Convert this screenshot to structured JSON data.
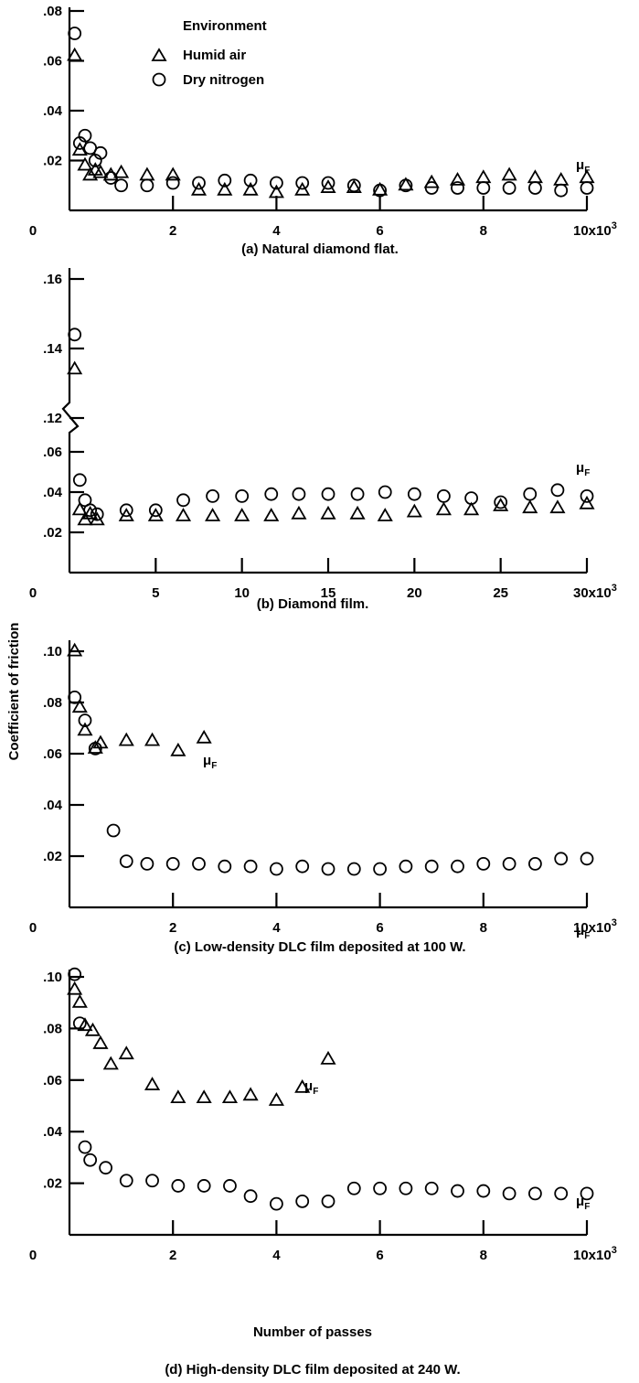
{
  "y_axis_label": "Coefficient of friction",
  "legend": {
    "title": "Environment",
    "entries": [
      {
        "marker": "triangle",
        "label": "Humid air"
      },
      {
        "marker": "circle",
        "label": "Dry nitrogen"
      }
    ]
  },
  "x_axis_label": "Number of passes",
  "chart_data": [
    {
      "type": "scatter",
      "caption": "(a) Natural diamond flat.",
      "xlim": [
        0,
        10000
      ],
      "ylim": [
        0,
        0.08
      ],
      "x_ticks": [
        "0",
        "2",
        "4",
        "6",
        "8"
      ],
      "x_multiplier": "10x10",
      "x_multiplier_exp": "3",
      "y_ticks": [
        ".02",
        ".04",
        ".06",
        ".08"
      ],
      "annotations": [
        {
          "text": "μ",
          "sub": "F"
        }
      ],
      "series": [
        {
          "name": "Humid air",
          "marker": "triangle",
          "x": [
            100,
            200,
            300,
            400,
            500,
            600,
            800,
            1000,
            1500,
            2000,
            2500,
            3000,
            3500,
            4000,
            4500,
            5000,
            5500,
            6000,
            6500,
            7000,
            7500,
            8000,
            8500,
            9000,
            9500,
            10000
          ],
          "y": [
            0.062,
            0.024,
            0.018,
            0.014,
            0.016,
            0.015,
            0.014,
            0.015,
            0.014,
            0.014,
            0.008,
            0.008,
            0.008,
            0.007,
            0.008,
            0.009,
            0.009,
            0.008,
            0.01,
            0.011,
            0.012,
            0.013,
            0.014,
            0.013,
            0.012,
            0.013
          ]
        },
        {
          "name": "Dry nitrogen",
          "marker": "circle",
          "x": [
            100,
            200,
            300,
            400,
            500,
            600,
            800,
            1000,
            1500,
            2000,
            2500,
            3000,
            3500,
            4000,
            4500,
            5000,
            5500,
            6000,
            6500,
            7000,
            7500,
            8000,
            8500,
            9000,
            9500,
            10000
          ],
          "y": [
            0.071,
            0.027,
            0.03,
            0.025,
            0.02,
            0.023,
            0.013,
            0.01,
            0.01,
            0.011,
            0.011,
            0.012,
            0.012,
            0.011,
            0.011,
            0.011,
            0.01,
            0.008,
            0.01,
            0.009,
            0.009,
            0.009,
            0.009,
            0.009,
            0.008,
            0.009
          ]
        }
      ]
    },
    {
      "type": "scatter",
      "caption": "(b) Diamond film.",
      "xlim": [
        0,
        30000
      ],
      "broken_axis": true,
      "y_ticks": [
        ".02",
        ".04",
        ".06",
        ".12",
        ".14",
        ".16"
      ],
      "x_ticks": [
        "0",
        "5",
        "10",
        "15",
        "20",
        "25"
      ],
      "x_multiplier": "30x10",
      "x_multiplier_exp": "3",
      "annotations": [
        {
          "text": "μ",
          "sub": "F"
        }
      ],
      "series": [
        {
          "name": "Humid air",
          "marker": "triangle",
          "x": [
            300,
            600,
            900,
            1200,
            1600,
            3300,
            5000,
            6600,
            8300,
            10000,
            11700,
            13300,
            15000,
            16700,
            18300,
            20000,
            21700,
            23300,
            25000,
            26700,
            28300,
            30000
          ],
          "y": [
            0.134,
            0.031,
            0.026,
            0.029,
            0.026,
            0.028,
            0.028,
            0.028,
            0.028,
            0.028,
            0.028,
            0.029,
            0.029,
            0.029,
            0.028,
            0.03,
            0.031,
            0.031,
            0.033,
            0.032,
            0.032,
            0.034
          ]
        },
        {
          "name": "Dry nitrogen",
          "marker": "circle",
          "x": [
            300,
            600,
            900,
            1200,
            1600,
            3300,
            5000,
            6600,
            8300,
            10000,
            11700,
            13300,
            15000,
            16700,
            18300,
            20000,
            21700,
            23300,
            25000,
            26700,
            28300,
            30000
          ],
          "y": [
            0.144,
            0.046,
            0.036,
            0.031,
            0.029,
            0.031,
            0.031,
            0.036,
            0.038,
            0.038,
            0.039,
            0.039,
            0.039,
            0.039,
            0.04,
            0.039,
            0.038,
            0.037,
            0.035,
            0.039,
            0.041,
            0.038
          ]
        }
      ]
    },
    {
      "type": "scatter",
      "caption": "(c) Low-density DLC film deposited at 100 W.",
      "xlim": [
        0,
        10000
      ],
      "ylim": [
        0,
        0.1
      ],
      "x_ticks": [
        "0",
        "2",
        "4",
        "6",
        "8"
      ],
      "x_multiplier": "10x10",
      "x_multiplier_exp": "3",
      "y_ticks": [
        ".02",
        ".04",
        ".06",
        ".08",
        ".10"
      ],
      "annotations": [
        {
          "text": "μ",
          "sub": "F"
        },
        {
          "text": "μ",
          "sub": "F"
        }
      ],
      "series": [
        {
          "name": "Humid air",
          "marker": "triangle",
          "x": [
            100,
            200,
            300,
            500,
            600,
            1100,
            1600,
            2100,
            2600
          ],
          "y": [
            0.1,
            0.078,
            0.069,
            0.062,
            0.064,
            0.065,
            0.065,
            0.061,
            0.066
          ]
        },
        {
          "name": "Dry nitrogen",
          "marker": "circle",
          "x": [
            100,
            300,
            500,
            850,
            1100,
            1500,
            2000,
            2500,
            3000,
            3500,
            4000,
            4500,
            5000,
            5500,
            6000,
            6500,
            7000,
            7500,
            8000,
            8500,
            9000,
            9500,
            10000
          ],
          "y": [
            0.082,
            0.073,
            0.062,
            0.03,
            0.018,
            0.017,
            0.017,
            0.017,
            0.016,
            0.016,
            0.015,
            0.016,
            0.015,
            0.015,
            0.015,
            0.016,
            0.016,
            0.016,
            0.017,
            0.017,
            0.017,
            0.019,
            0.019
          ]
        }
      ]
    },
    {
      "type": "scatter",
      "caption": "(d) High-density DLC film deposited at 240 W.",
      "xlim": [
        0,
        10000
      ],
      "ylim": [
        0,
        0.1
      ],
      "x_ticks": [
        "0",
        "2",
        "4",
        "6",
        "8"
      ],
      "x_multiplier": "10x10",
      "x_multiplier_exp": "3",
      "y_ticks": [
        ".02",
        ".04",
        ".06",
        ".08",
        ".10"
      ],
      "annotations": [
        {
          "text": "μ",
          "sub": "F"
        },
        {
          "text": "μ",
          "sub": "F"
        }
      ],
      "series": [
        {
          "name": "Humid air",
          "marker": "triangle",
          "x": [
            100,
            200,
            300,
            450,
            600,
            800,
            1100,
            1600,
            2100,
            2600,
            3100,
            3500,
            4000,
            4500,
            5000
          ],
          "y": [
            0.095,
            0.09,
            0.081,
            0.079,
            0.074,
            0.066,
            0.07,
            0.058,
            0.053,
            0.053,
            0.053,
            0.054,
            0.052,
            0.057,
            0.068
          ]
        },
        {
          "name": "Dry nitrogen",
          "marker": "circle",
          "x": [
            100,
            200,
            300,
            400,
            700,
            1100,
            1600,
            2100,
            2600,
            3100,
            3500,
            4000,
            4500,
            5000,
            5500,
            6000,
            6500,
            7000,
            7500,
            8000,
            8500,
            9000,
            9500,
            10000
          ],
          "y": [
            0.101,
            0.082,
            0.034,
            0.029,
            0.026,
            0.021,
            0.021,
            0.019,
            0.019,
            0.019,
            0.015,
            0.012,
            0.013,
            0.013,
            0.018,
            0.018,
            0.018,
            0.018,
            0.017,
            0.017,
            0.016,
            0.016,
            0.016,
            0.016
          ]
        }
      ]
    }
  ]
}
